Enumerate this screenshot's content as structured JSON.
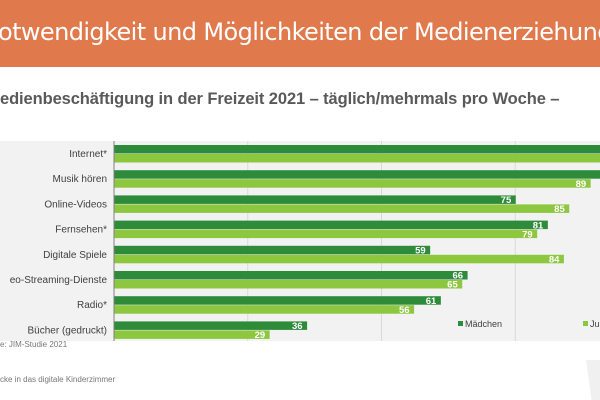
{
  "header": {
    "title": "otwendigkeit und Möglichkeiten der Medienerziehung"
  },
  "footer": {
    "source": "e: JIM-Studie 2021",
    "caption": "cke in das digitale Kinderzimmer"
  },
  "colors": {
    "header": "#e07a4c",
    "maedchen": "#2e8b3a",
    "jungen": "#8dc63f"
  },
  "chart_data": {
    "type": "bar",
    "orientation": "horizontal",
    "title": "edienbeschäftigung in der Freizeit 2021 – täglich/mehrmals pro Woche –",
    "categories": [
      "Internet*",
      "Musik hören",
      "Online-Videos",
      "Fernsehen*",
      "Digitale Spiele",
      "eo-Streaming-Dienste",
      "Radio*",
      "Bücher (gedruckt)"
    ],
    "series": [
      {
        "name": "Mädchen",
        "values": [
          95,
          93,
          75,
          81,
          59,
          66,
          61,
          36
        ],
        "labels": [
          "",
          "",
          "75",
          "81",
          "59",
          "66",
          "61",
          "36"
        ]
      },
      {
        "name": "Jungen",
        "values": [
          94,
          89,
          85,
          79,
          84,
          65,
          56,
          29
        ],
        "labels": [
          "",
          "89",
          "85",
          "79",
          "84",
          "65",
          "56",
          "29"
        ]
      }
    ],
    "legend_labels": [
      "Mädchen",
      "Jun"
    ],
    "xlim": [
      0,
      100
    ],
    "grid": true,
    "legend": "bottom-right"
  }
}
